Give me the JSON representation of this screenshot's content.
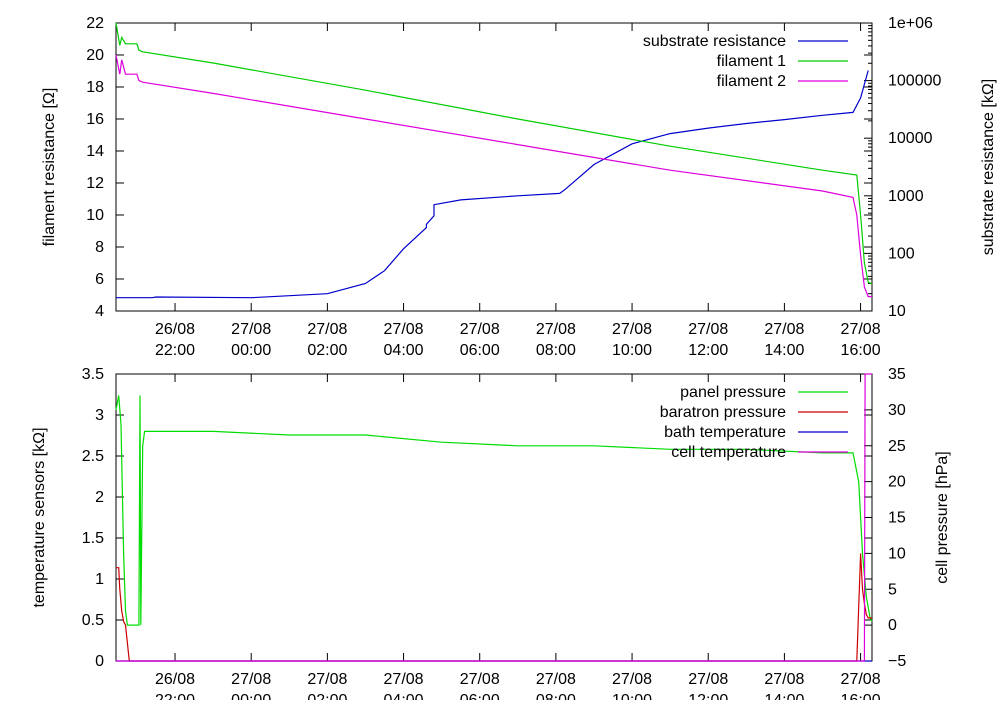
{
  "chart_data": [
    {
      "type": "line",
      "ylabel": "filament resistance [Ω]",
      "y2label": "substrate resistance [kΩ]",
      "xlim": [
        -2.55,
        17.3
      ],
      "ylim": [
        4,
        22
      ],
      "y2lim": [
        10,
        1000000
      ],
      "y2_scale": "log",
      "x_ticks": [
        {
          "x": -1,
          "label1": "26/08",
          "label2": "22:00"
        },
        {
          "x": 1,
          "label1": "27/08",
          "label2": "00:00"
        },
        {
          "x": 3,
          "label1": "27/08",
          "label2": "02:00"
        },
        {
          "x": 5,
          "label1": "27/08",
          "label2": "04:00"
        },
        {
          "x": 7,
          "label1": "27/08",
          "label2": "06:00"
        },
        {
          "x": 9,
          "label1": "27/08",
          "label2": "08:00"
        },
        {
          "x": 11,
          "label1": "27/08",
          "label2": "10:00"
        },
        {
          "x": 13,
          "label1": "27/08",
          "label2": "12:00"
        },
        {
          "x": 15,
          "label1": "27/08",
          "label2": "14:00"
        },
        {
          "x": 17,
          "label1": "27/08",
          "label2": "16:00"
        }
      ],
      "y_ticks": [
        "4",
        "6",
        "8",
        "10",
        "12",
        "14",
        "16",
        "18",
        "20",
        "22"
      ],
      "y2_ticks": [
        {
          "value": 10,
          "label": "10"
        },
        {
          "value": 100,
          "label": "100"
        },
        {
          "value": 1000,
          "label": "1000"
        },
        {
          "value": 10000,
          "label": "10000"
        },
        {
          "value": 100000,
          "label": "100000"
        },
        {
          "value": 1000000,
          "label": "1e+06"
        }
      ],
      "legend_position": "top-right",
      "series": [
        {
          "name": "substrate resistance",
          "color": "#0000cc",
          "axis": "y2",
          "x": [
            -2.55,
            -1.6,
            -1.5,
            1.0,
            3.0,
            4.0,
            4.5,
            5.0,
            5.6,
            5.6,
            5.8,
            5.8,
            6.5,
            8.0,
            9.1,
            9.25,
            10.0,
            11.0,
            12.0,
            13.0,
            14.0,
            15.0,
            16.0,
            16.8,
            17.0,
            17.2
          ],
          "y": [
            17,
            17,
            17.5,
            17,
            20,
            30,
            50,
            120,
            280,
            320,
            450,
            700,
            850,
            1000,
            1100,
            1300,
            3500,
            8000,
            12000,
            15000,
            18000,
            21000,
            25000,
            28000,
            50000,
            150000
          ]
        },
        {
          "name": "filament 1",
          "color": "#00cc00",
          "axis": "y",
          "x": [
            -2.55,
            -2.45,
            -2.4,
            -2.3,
            -2.0,
            -1.95,
            -1.85,
            0.0,
            4.0,
            8.0,
            12.0,
            16.0,
            16.9,
            17.0,
            17.1,
            17.2,
            17.3
          ],
          "y": [
            22.0,
            20.6,
            21.1,
            20.7,
            20.7,
            20.3,
            20.2,
            19.5,
            17.8,
            16.0,
            14.3,
            12.8,
            12.5,
            10.0,
            7.0,
            5.8,
            5.7
          ]
        },
        {
          "name": "filament 2",
          "color": "#dd00dd",
          "axis": "y",
          "x": [
            -2.55,
            -2.45,
            -2.4,
            -2.3,
            -2.0,
            -1.95,
            -1.85,
            0.0,
            4.0,
            8.0,
            12.0,
            16.0,
            16.8,
            16.9,
            17.0,
            17.1,
            17.2,
            17.3
          ],
          "y": [
            20.0,
            18.8,
            19.7,
            18.8,
            18.8,
            18.4,
            18.3,
            17.6,
            16.0,
            14.4,
            12.8,
            11.5,
            11.1,
            10.0,
            7.5,
            5.5,
            4.9,
            4.9
          ]
        }
      ]
    },
    {
      "type": "line",
      "ylabel": "temperature sensors [kΩ]",
      "y2label": "cell pressure [hPa]",
      "xlim": [
        -2.55,
        17.3
      ],
      "ylim": [
        0,
        3.5
      ],
      "y2lim": [
        -5,
        35
      ],
      "x_ticks": [
        {
          "x": -1,
          "label1": "26/08",
          "label2": "22:00"
        },
        {
          "x": 1,
          "label1": "27/08",
          "label2": "00:00"
        },
        {
          "x": 3,
          "label1": "27/08",
          "label2": "02:00"
        },
        {
          "x": 5,
          "label1": "27/08",
          "label2": "04:00"
        },
        {
          "x": 7,
          "label1": "27/08",
          "label2": "06:00"
        },
        {
          "x": 9,
          "label1": "27/08",
          "label2": "08:00"
        },
        {
          "x": 11,
          "label1": "27/08",
          "label2": "10:00"
        },
        {
          "x": 13,
          "label1": "27/08",
          "label2": "12:00"
        },
        {
          "x": 15,
          "label1": "27/08",
          "label2": "14:00"
        },
        {
          "x": 17,
          "label1": "27/08",
          "label2": "16:00"
        }
      ],
      "y_ticks": [
        "0",
        "0.5",
        "1",
        "1.5",
        "2",
        "2.5",
        "3",
        "3.5"
      ],
      "y2_ticks": [
        "−5",
        "0",
        "5",
        "10",
        "15",
        "20",
        "25",
        "30",
        "35"
      ],
      "legend_position": "top-right",
      "series": [
        {
          "name": "panel pressure",
          "color": "#00dd00",
          "axis": "y2",
          "x": [
            -2.55,
            -2.48,
            -2.42,
            -2.35,
            -2.3,
            -2.25,
            -2.2,
            -2.1,
            -2.0,
            -1.95,
            -1.92,
            -1.9,
            -1.85,
            -1.8,
            0.0,
            2.0,
            4.0,
            6.0,
            8.0,
            10.0,
            12.0,
            14.0,
            16.0,
            16.8,
            16.95,
            17.05,
            17.15,
            17.25,
            17.3
          ],
          "y": [
            30,
            32,
            28,
            10,
            2,
            0,
            0,
            0,
            0,
            0,
            32,
            0,
            25,
            27,
            27,
            26.5,
            26.5,
            25.5,
            25,
            25,
            24.5,
            24.5,
            24,
            24,
            20,
            10,
            4,
            1,
            0.5
          ]
        },
        {
          "name": "baratron pressure",
          "color": "#cc0000",
          "axis": "y2",
          "x": [
            -2.55,
            -2.48,
            -2.45,
            -2.4,
            -2.35,
            -2.3,
            -2.2,
            16.9,
            17.0,
            17.05,
            17.1,
            17.15,
            17.2,
            17.3
          ],
          "y": [
            8,
            8,
            5,
            2,
            0.5,
            0,
            -5,
            -5,
            10,
            5,
            3,
            1.5,
            1,
            1
          ]
        },
        {
          "name": "bath temperature",
          "color": "#0000cc",
          "axis": "y",
          "x": [
            -2.55,
            17.3
          ],
          "y": [
            0.0,
            0.0
          ]
        },
        {
          "name": "cell temperature",
          "color": "#dd00dd",
          "axis": "y",
          "x": [
            -2.55,
            17.1,
            17.12,
            17.14,
            17.3
          ],
          "y": [
            0.0,
            0.0,
            3.5,
            3.5,
            3.5
          ]
        }
      ]
    }
  ]
}
